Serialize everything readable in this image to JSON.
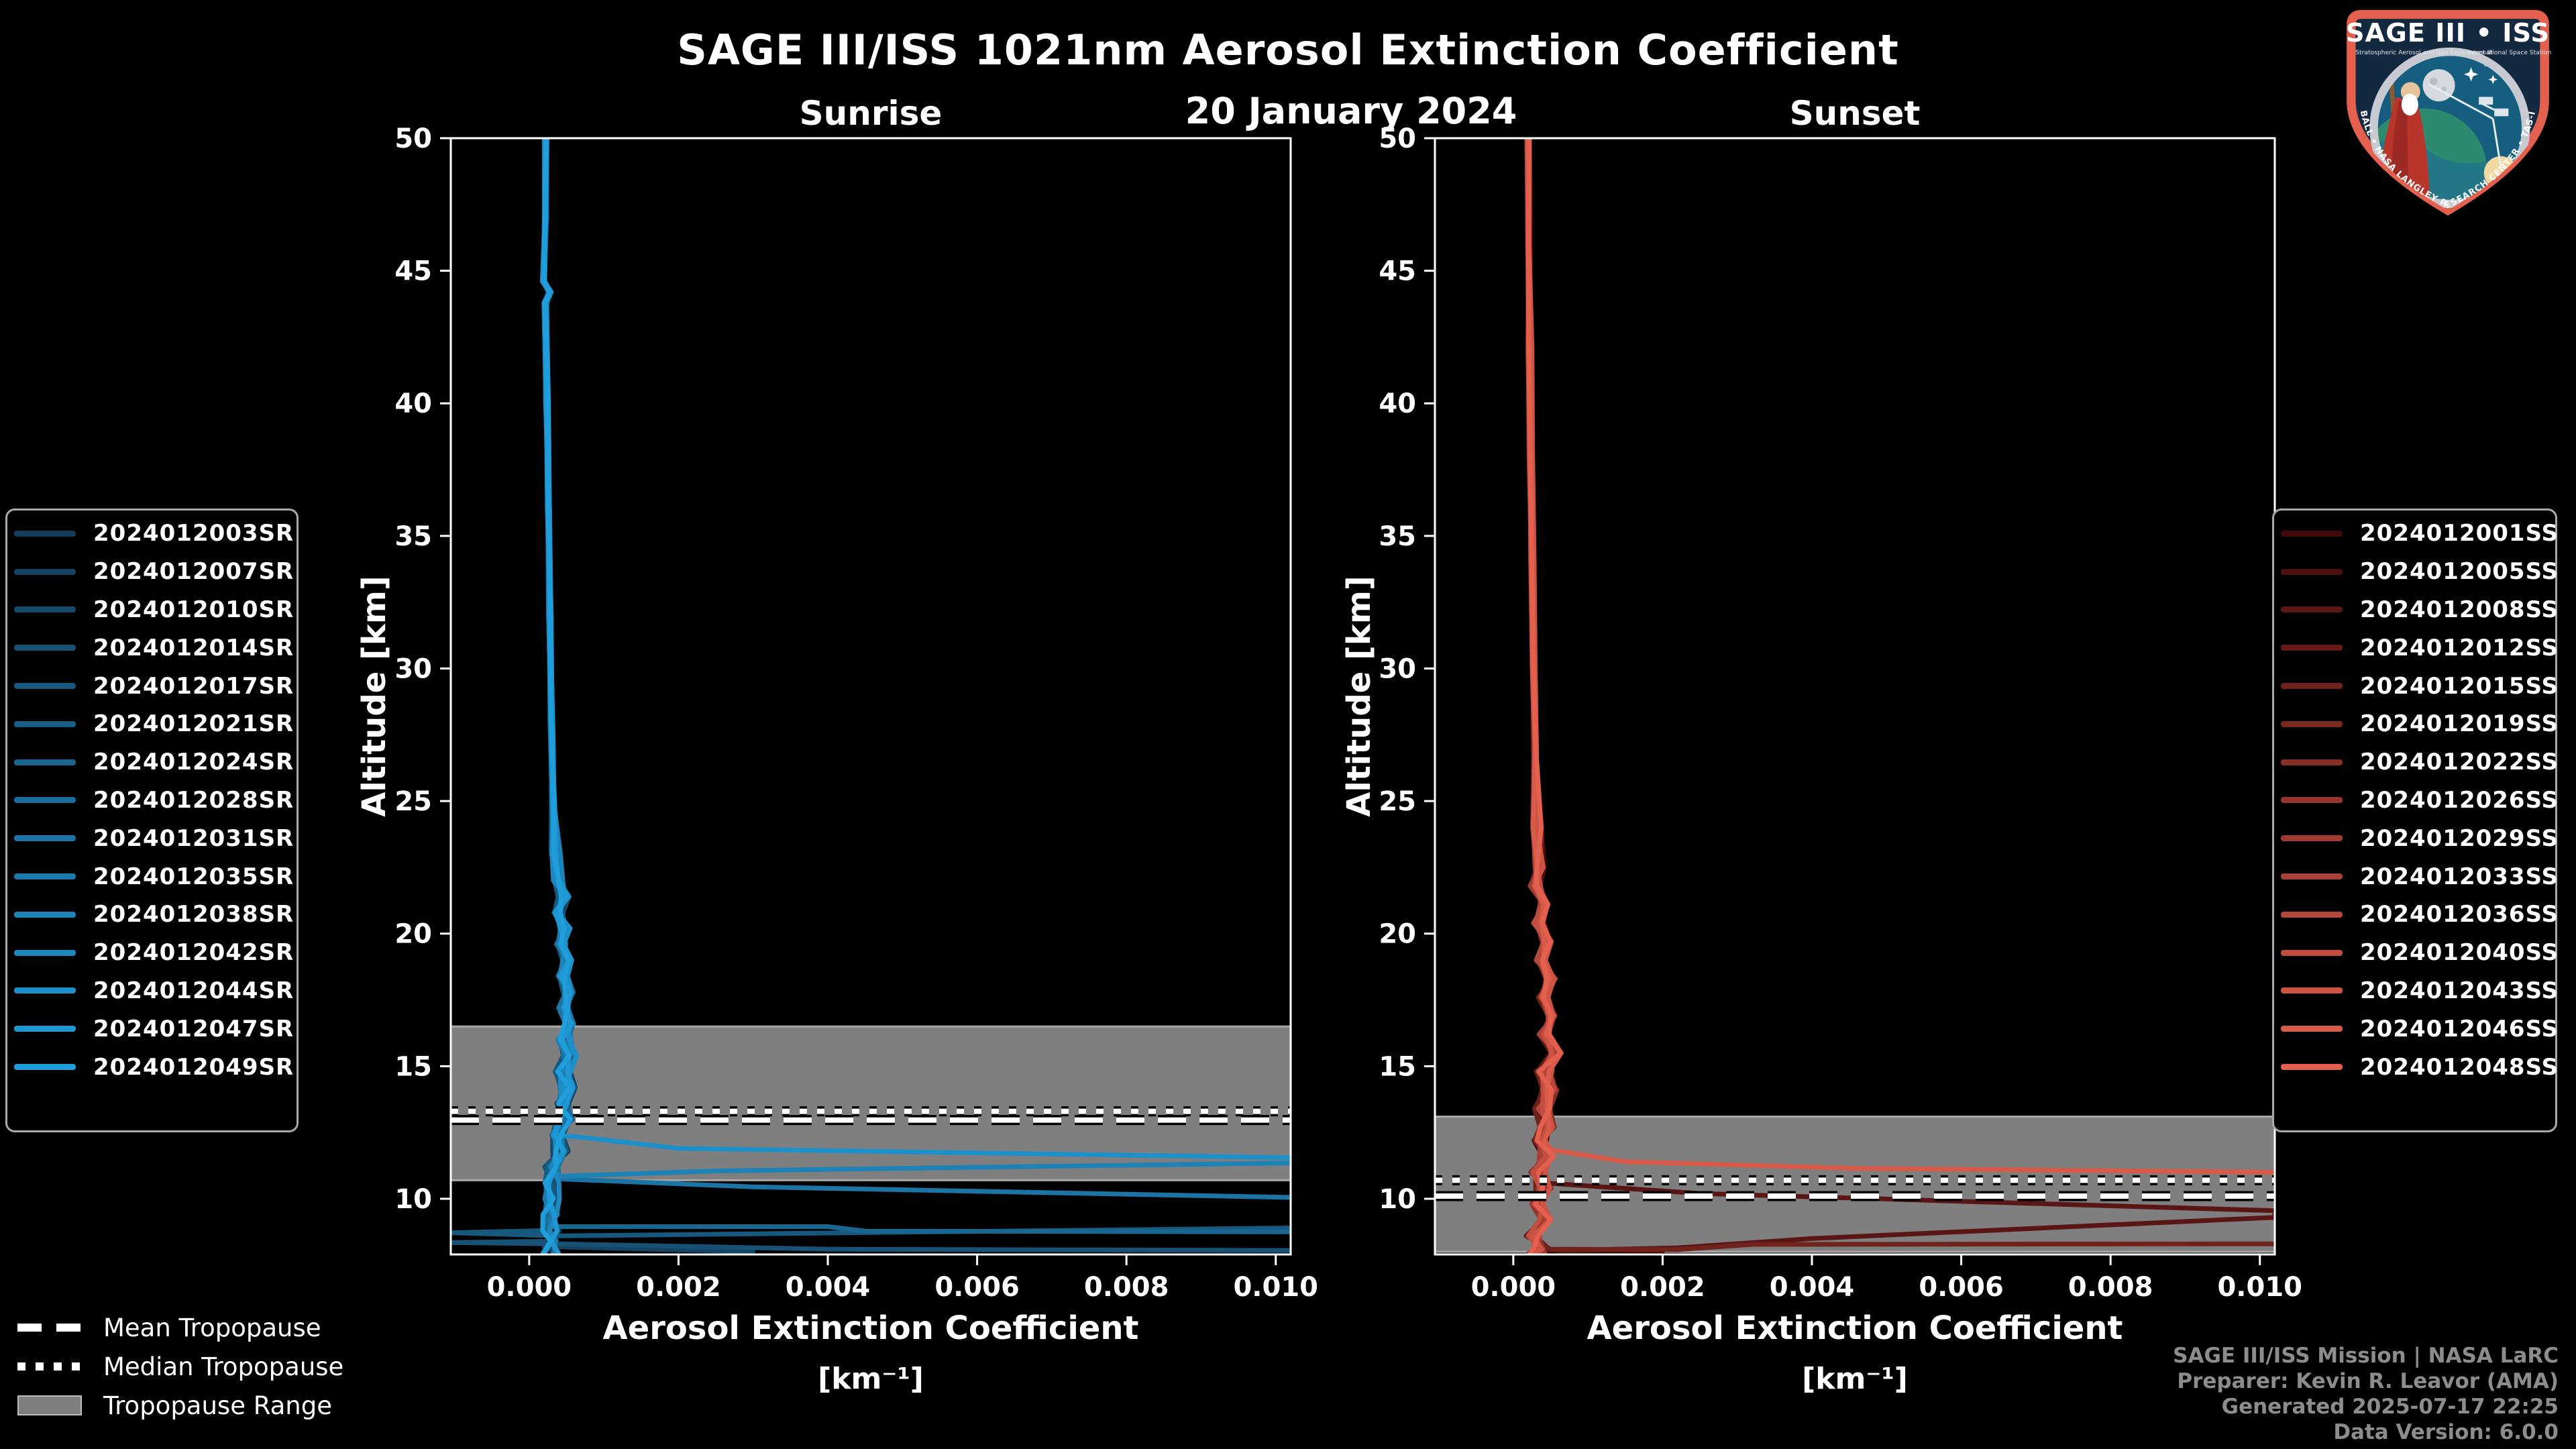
{
  "header": {
    "title": "SAGE III/ISS 1021nm Aerosol Extinction Coefficient",
    "subtitle": "20 January 2024"
  },
  "axes": {
    "xlabel_line1": "Aerosol Extinction Coefficient",
    "xlabel_line2": "[km⁻¹]",
    "ylabel": "Altitude [km]"
  },
  "tropopause_legend": {
    "items": [
      {
        "label": "Mean Tropopause",
        "style": "dashed"
      },
      {
        "label": "Median Tropopause",
        "style": "dotted"
      },
      {
        "label": "Tropopause Range",
        "style": "range"
      }
    ]
  },
  "credits": [
    "SAGE III/ISS Mission | NASA LaRC",
    "Preparer: Kevin R. Leavor (AMA)",
    "Generated 2025-07-17 22:25",
    "Data Version: 6.0.0"
  ],
  "logo": {
    "title": "SAGE III • ISS",
    "subtitle_left": "Stratospheric Aerosol and Gas Experiment III",
    "subtitle_right": "International Space Station",
    "arc_text": "BALL • NASA LANGLEY RESEARCH CENTER • TAS-I • ESA",
    "border_color": "#e4604e",
    "space_color": "#13293f"
  },
  "colors": {
    "background": "#000000",
    "axis": "#ffffff",
    "tropopause_band": "#7f7f7f",
    "band_edge": "#a8a8a8",
    "credits_text": "#8c8c8c"
  },
  "chart_data": [
    {
      "panel": "Sunrise",
      "type": "line",
      "xlabel": "Aerosol Extinction Coefficient [km⁻¹]",
      "ylabel": "Altitude [km]",
      "xlim": [
        -0.00105,
        0.0102
      ],
      "ylim": [
        7.9,
        50
      ],
      "xticks": [
        0.0,
        0.002,
        0.004,
        0.006,
        0.008,
        0.01
      ],
      "xtick_labels": [
        "0.000",
        "0.002",
        "0.004",
        "0.006",
        "0.008",
        "0.010"
      ],
      "yticks": [
        10,
        15,
        20,
        25,
        30,
        35,
        40,
        45,
        50
      ],
      "grid": false,
      "legend_position": "outside-left",
      "series": [
        "2024012003SR",
        "2024012007SR",
        "2024012010SR",
        "2024012014SR",
        "2024012017SR",
        "2024012021SR",
        "2024012024SR",
        "2024012028SR",
        "2024012031SR",
        "2024012035SR",
        "2024012038SR",
        "2024012042SR",
        "2024012044SR",
        "2024012047SR",
        "2024012049SR"
      ],
      "colors": [
        "#143C5A",
        "#154363",
        "#164A6C",
        "#175176",
        "#17587F",
        "#185F88",
        "#196691",
        "#1A6D9B",
        "#1B74A4",
        "#1C7BAD",
        "#1D82B6",
        "#1E89BF",
        "#1E90C9",
        "#1F97D2",
        "#209EDB"
      ],
      "tropopause": {
        "mean": 12.97,
        "median": 13.3,
        "range": [
          10.7,
          16.5
        ]
      },
      "base_profile": [
        [
          50,
          0.00022
        ],
        [
          47,
          0.00022
        ],
        [
          44.6,
          0.00019
        ],
        [
          44.2,
          0.00028
        ],
        [
          43.8,
          0.00022
        ],
        [
          40,
          0.00024
        ],
        [
          36,
          0.00026
        ],
        [
          32,
          0.00028
        ],
        [
          28,
          0.0003
        ],
        [
          25,
          0.00032
        ],
        [
          23,
          0.00035
        ],
        [
          22,
          0.00039
        ],
        [
          21.4,
          0.00046
        ],
        [
          20.8,
          0.0004
        ],
        [
          20.2,
          0.00048
        ],
        [
          19.6,
          0.00043
        ],
        [
          19,
          0.0005
        ],
        [
          18.4,
          0.00045
        ],
        [
          17.8,
          0.00053
        ],
        [
          17.2,
          0.00047
        ],
        [
          16.6,
          0.00054
        ],
        [
          16,
          0.00048
        ],
        [
          15.4,
          0.00054
        ],
        [
          14.8,
          0.00046
        ],
        [
          14.2,
          0.00052
        ],
        [
          13.6,
          0.00044
        ],
        [
          13,
          0.00048
        ],
        [
          12.4,
          0.00038
        ],
        [
          11.8,
          0.00042
        ],
        [
          11.2,
          0.00032
        ],
        [
          10.6,
          0.0003
        ],
        [
          10,
          0.00031
        ],
        [
          9.4,
          0.00028
        ],
        [
          8.8,
          0.00029
        ],
        [
          8.4,
          0.00027
        ],
        [
          7.95,
          0.00028
        ]
      ],
      "jitter_amp": [
        [
          24,
          1.8e-05
        ],
        [
          16,
          7e-05
        ],
        [
          0,
          0.00011
        ]
      ],
      "outliers": {
        "12": [
          [
            12.35,
            0.0006
          ],
          [
            11.9,
            0.002
          ],
          [
            11.55,
            0.0102
          ]
        ],
        "10": [
          [
            10.85,
            0.0004
          ],
          [
            11.05,
            0.0025
          ],
          [
            11.35,
            0.0102
          ]
        ],
        "8": [
          [
            10.75,
            0.0004
          ],
          [
            10.45,
            0.003
          ],
          [
            10.05,
            0.0102
          ]
        ],
        "6": [
          [
            8.95,
            0.0002
          ],
          [
            8.95,
            0.004
          ],
          [
            8.78,
            0.0045
          ],
          [
            8.75,
            0.0102
          ]
        ],
        "4": [
          [
            8.72,
            -0.00105
          ],
          [
            8.6,
            0.0004
          ],
          [
            8.9,
            0.0102
          ]
        ],
        "3": [
          [
            8.35,
            -0.00105
          ],
          [
            8.3,
            0.0004
          ],
          [
            8.1,
            0.004
          ],
          [
            8.05,
            0.0102
          ]
        ],
        "1": [
          [
            8.2,
            0.0002
          ],
          [
            8.0,
            0.003
          ]
        ]
      }
    },
    {
      "panel": "Sunset",
      "type": "line",
      "xlabel": "Aerosol Extinction Coefficient [km⁻¹]",
      "ylabel": "Altitude [km]",
      "xlim": [
        -0.00105,
        0.0102
      ],
      "ylim": [
        7.9,
        50
      ],
      "xticks": [
        0.0,
        0.002,
        0.004,
        0.006,
        0.008,
        0.01
      ],
      "xtick_labels": [
        "0.000",
        "0.002",
        "0.004",
        "0.006",
        "0.008",
        "0.010"
      ],
      "yticks": [
        10,
        15,
        20,
        25,
        30,
        35,
        40,
        45,
        50
      ],
      "grid": false,
      "legend_position": "outside-right",
      "series": [
        "2024012001SS",
        "2024012005SS",
        "2024012008SS",
        "2024012012SS",
        "2024012015SS",
        "2024012019SS",
        "2024012022SS",
        "2024012026SS",
        "2024012029SS",
        "2024012033SS",
        "2024012036SS",
        "2024012040SS",
        "2024012043SS",
        "2024012046SS",
        "2024012048SS"
      ],
      "colors": [
        "#420A0A",
        "#4E100F",
        "#591614",
        "#651C19",
        "#70231D",
        "#7C2922",
        "#872F27",
        "#93352C",
        "#9F3B31",
        "#AA4136",
        "#B6473B",
        "#C14E3F",
        "#CD5444",
        "#D85A49",
        "#E4604E"
      ],
      "tropopause": {
        "mean": 10.1,
        "median": 10.7,
        "range": [
          8.0,
          13.1
        ]
      },
      "base_profile": [
        [
          50,
          0.0002
        ],
        [
          46,
          0.00021
        ],
        [
          42,
          0.00022
        ],
        [
          38,
          0.00023
        ],
        [
          34,
          0.00025
        ],
        [
          30,
          0.00027
        ],
        [
          27,
          0.00029
        ],
        [
          24,
          0.00032
        ],
        [
          22.5,
          0.00036
        ],
        [
          21.8,
          0.0003
        ],
        [
          21.1,
          0.00042
        ],
        [
          20.4,
          0.00034
        ],
        [
          19.7,
          0.00046
        ],
        [
          19,
          0.00036
        ],
        [
          18.3,
          0.0005
        ],
        [
          17.6,
          0.0004
        ],
        [
          16.9,
          0.00052
        ],
        [
          16.2,
          0.00042
        ],
        [
          15.5,
          0.00054
        ],
        [
          14.8,
          0.00042
        ],
        [
          14.1,
          0.0005
        ],
        [
          13.4,
          0.0004
        ],
        [
          12.7,
          0.00046
        ],
        [
          12.2,
          0.00036
        ],
        [
          11.6,
          0.00044
        ],
        [
          11,
          0.00034
        ],
        [
          10.4,
          0.00042
        ],
        [
          9.8,
          0.0003
        ],
        [
          9.2,
          0.0004
        ],
        [
          8.6,
          0.00028
        ],
        [
          8.1,
          0.00038
        ],
        [
          7.95,
          0.00032
        ]
      ],
      "jitter_amp": [
        [
          24,
          1.8e-05
        ],
        [
          16,
          7e-05
        ],
        [
          0,
          0.00011
        ]
      ],
      "outliers": {
        "13": [
          [
            11.85,
            0.0005
          ],
          [
            11.4,
            0.0015
          ],
          [
            11.15,
            0.0045
          ],
          [
            11.0,
            0.0102
          ]
        ],
        "2": [
          [
            10.6,
            0.0004
          ],
          [
            10.2,
            0.0025
          ],
          [
            9.55,
            0.0102
          ],
          [
            9.3,
            0.0102
          ],
          [
            8.5,
            0.004
          ],
          [
            8.15,
            0.0022
          ],
          [
            8.05,
            0.0006
          ]
        ],
        "4": [
          [
            8.1,
            0.0005
          ],
          [
            8.08,
            0.0022
          ],
          [
            8.28,
            0.0032
          ],
          [
            8.3,
            0.0102
          ]
        ],
        "0": [
          [
            8.05,
            0.0004
          ],
          [
            7.95,
            0.002
          ]
        ]
      }
    }
  ]
}
